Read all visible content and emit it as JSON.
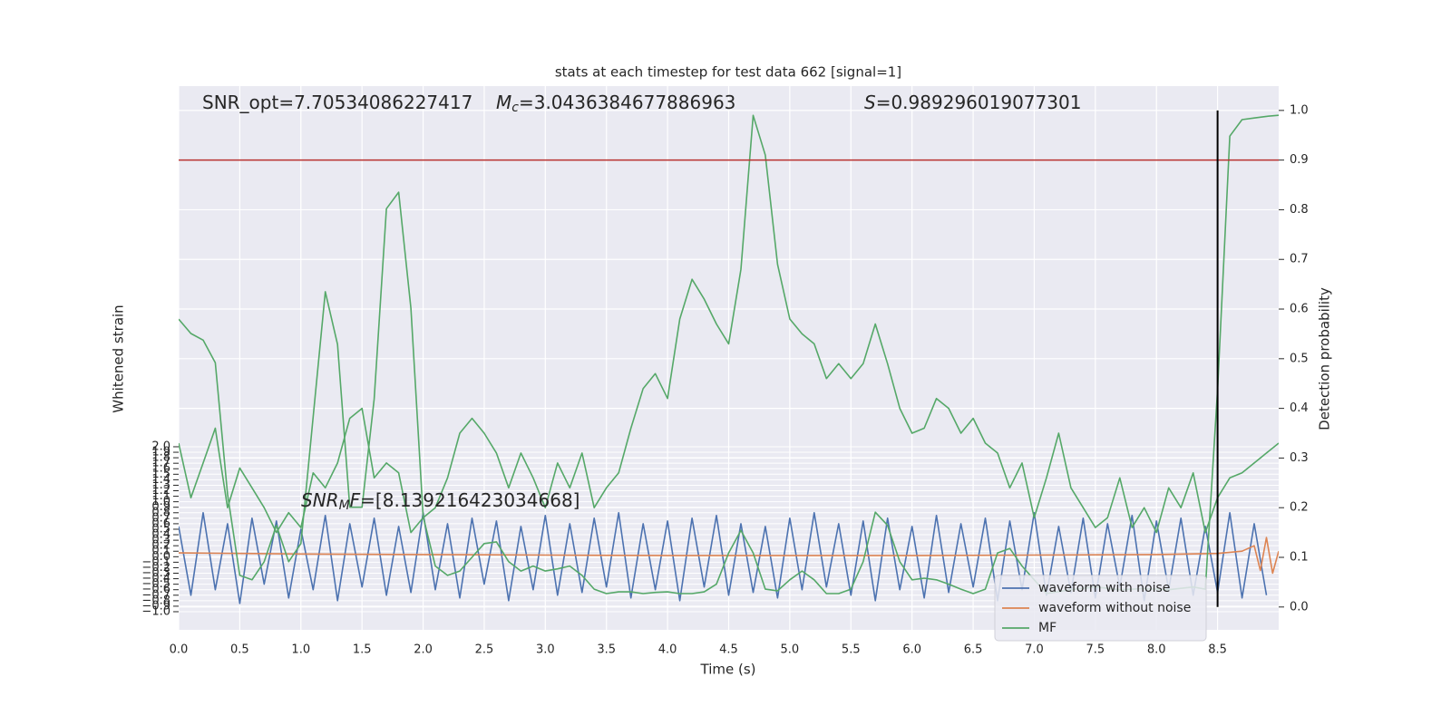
{
  "chart_data": {
    "type": "line",
    "title": "stats at each timestep for test data 662 [signal=1]",
    "xlabel": "Time (s)",
    "ylabel": "Whitened strain",
    "y2label": "Detection probability",
    "xlim": [
      0,
      9.0
    ],
    "ylim": [
      -1.33,
      8.56
    ],
    "y2lim": [
      -0.046,
      1.049
    ],
    "xticks": [
      {
        "value": 0,
        "label": "0.0"
      },
      0.5,
      {
        "value": 1,
        "label": "1.0"
      },
      1.5,
      {
        "value": 2,
        "label": "2.0"
      },
      2.5,
      {
        "value": 3,
        "label": "3.0"
      },
      3.5,
      {
        "value": 4,
        "label": "4.0"
      },
      4.5,
      {
        "value": 5,
        "label": "5.0"
      },
      5.5,
      {
        "value": 6,
        "label": "6.0"
      },
      6.5,
      {
        "value": 7,
        "label": "7.0"
      },
      7.5,
      {
        "value": 8,
        "label": "8.0"
      },
      8.5
    ],
    "yticks": [
      {
        "value": -1.0,
        "label": "−1.0"
      },
      {
        "value": -0.9,
        "label": "−0.9"
      },
      {
        "value": -0.8,
        "label": "−0.8"
      },
      {
        "value": -0.7,
        "label": "−0.7"
      },
      {
        "value": -0.6,
        "label": "−0.6"
      },
      {
        "value": -0.5,
        "label": "−0.5"
      },
      {
        "value": -0.4,
        "label": "−0.4"
      },
      {
        "value": -0.3,
        "label": "−0.3"
      },
      {
        "value": -0.2,
        "label": "−0.2"
      },
      {
        "value": -0.1,
        "label": "−0.1"
      },
      {
        "value": 0,
        "label": "0.0"
      },
      0.1,
      0.2,
      0.3,
      0.4,
      0.5,
      0.6,
      0.7,
      0.8,
      0.9,
      {
        "value": 1,
        "label": "1.0"
      },
      1.1,
      1.2,
      1.3,
      1.4,
      1.5,
      1.6,
      1.7,
      1.8,
      1.9,
      {
        "value": 2,
        "label": "2.0"
      }
    ],
    "y2ticks": [
      {
        "value": 0,
        "label": "0.0"
      },
      0.1,
      0.2,
      0.3,
      0.4,
      0.5,
      0.6,
      0.7,
      0.8,
      0.9,
      {
        "value": 1,
        "label": "1.0"
      }
    ],
    "grid": true,
    "legend": "lower right",
    "series": [
      {
        "name": "waveform with noise",
        "color": "#4c72b0",
        "axis": "y",
        "x": [
          0,
          0.1,
          0.2,
          0.3,
          0.4,
          0.5,
          0.6,
          0.7,
          0.8,
          0.9,
          1,
          1.1,
          1.2,
          1.3,
          1.4,
          1.5,
          1.6,
          1.7,
          1.8,
          1.9,
          2,
          2.1,
          2.2,
          2.3,
          2.4,
          2.5,
          2.6,
          2.7,
          2.8,
          2.9,
          3,
          3.1,
          3.2,
          3.3,
          3.4,
          3.5,
          3.6,
          3.7,
          3.8,
          3.9,
          4,
          4.1,
          4.2,
          4.3,
          4.4,
          4.5,
          4.6,
          4.7,
          4.8,
          4.9,
          5,
          5.1,
          5.2,
          5.3,
          5.4,
          5.5,
          5.6,
          5.7,
          5.8,
          5.9,
          6,
          6.1,
          6.2,
          6.3,
          6.4,
          6.5,
          6.6,
          6.7,
          6.8,
          6.9,
          7,
          7.1,
          7.2,
          7.3,
          7.4,
          7.5,
          7.6,
          7.7,
          7.8,
          7.9,
          8,
          8.1,
          8.2,
          8.3,
          8.4,
          8.5,
          8.6,
          8.7,
          8.8,
          8.9
        ],
        "values": [
          0.55,
          -0.7,
          0.8,
          -0.6,
          0.6,
          -0.85,
          0.7,
          -0.5,
          0.65,
          -0.75,
          0.5,
          -0.6,
          0.75,
          -0.8,
          0.6,
          -0.55,
          0.7,
          -0.7,
          0.55,
          -0.65,
          0.8,
          -0.6,
          0.6,
          -0.75,
          0.7,
          -0.5,
          0.65,
          -0.8,
          0.55,
          -0.6,
          0.75,
          -0.7,
          0.6,
          -0.65,
          0.7,
          -0.55,
          0.8,
          -0.75,
          0.6,
          -0.6,
          0.65,
          -0.8,
          0.7,
          -0.55,
          0.75,
          -0.7,
          0.6,
          -0.65,
          0.55,
          -0.75,
          0.7,
          -0.6,
          0.8,
          -0.55,
          0.6,
          -0.7,
          0.65,
          -0.8,
          0.7,
          -0.6,
          0.55,
          -0.75,
          0.75,
          -0.65,
          0.6,
          -0.55,
          0.7,
          -0.8,
          0.65,
          -0.6,
          0.8,
          -0.7,
          0.55,
          -0.65,
          0.7,
          -0.75,
          0.6,
          -0.55,
          0.75,
          -0.8,
          0.65,
          -0.6,
          0.7,
          -0.7,
          0.55,
          -0.65,
          0.8,
          -0.75,
          0.6,
          -0.7
        ]
      },
      {
        "name": "waveform without noise",
        "color": "#dd8452",
        "axis": "y",
        "x": [
          0,
          1,
          2,
          3,
          4,
          5,
          6,
          7,
          8,
          8.5,
          8.7,
          8.8,
          8.85,
          8.9,
          8.95,
          9.0
        ],
        "values": [
          0.07,
          0.05,
          0.04,
          0.03,
          0.02,
          0.02,
          0.02,
          0.03,
          0.04,
          0.06,
          0.1,
          0.2,
          -0.25,
          0.35,
          -0.3,
          0.1
        ]
      },
      {
        "name": "MF",
        "color": "#55a868",
        "axis": "y",
        "x": [
          0,
          0.1,
          0.2,
          0.3,
          0.4,
          0.5,
          0.6,
          0.7,
          0.8,
          0.9,
          1,
          1.1,
          1.2,
          1.3,
          1.4,
          1.5,
          1.6,
          1.7,
          1.8,
          1.9,
          2,
          2.1,
          2.2,
          2.3,
          2.4,
          2.5,
          2.6,
          2.7,
          2.8,
          2.9,
          3,
          3.1,
          3.2,
          3.3,
          3.4,
          3.5,
          3.6,
          3.7,
          3.8,
          3.9,
          4,
          4.1,
          4.2,
          4.3,
          4.4,
          4.5,
          4.6,
          4.7,
          4.8,
          4.9,
          5,
          5.1,
          5.2,
          5.3,
          5.4,
          5.5,
          5.6,
          5.7,
          5.8,
          5.9,
          6,
          6.1,
          6.2,
          6.3,
          6.4,
          6.5,
          6.6,
          6.7,
          6.8,
          6.9,
          7,
          7.1,
          7.3,
          7.5,
          7.7,
          7.9,
          8.1,
          8.3,
          8.4,
          8.5,
          8.6,
          8.7,
          8.8,
          8.9,
          9.0
        ],
        "values": [
          4.32,
          4.06,
          3.94,
          3.53,
          1.14,
          -0.34,
          -0.42,
          -0.09,
          0.57,
          -0.09,
          0.24,
          2.54,
          4.82,
          3.86,
          0.9,
          0.9,
          2.87,
          6.33,
          6.63,
          4.52,
          0.73,
          -0.17,
          -0.34,
          -0.26,
          -0.01,
          0.24,
          0.27,
          -0.09,
          -0.26,
          -0.17,
          -0.26,
          -0.22,
          -0.17,
          -0.34,
          -0.59,
          -0.67,
          -0.64,
          -0.64,
          -0.67,
          -0.65,
          -0.64,
          -0.67,
          -0.67,
          -0.64,
          -0.5,
          0.07,
          0.48,
          0.07,
          -0.59,
          -0.62,
          -0.42,
          -0.26,
          -0.42,
          -0.67,
          -0.67,
          -0.59,
          -0.09,
          0.81,
          0.57,
          -0.09,
          -0.42,
          -0.39,
          -0.42,
          -0.5,
          -0.59,
          -0.67,
          -0.59,
          0.07,
          0.15,
          -0.17,
          -0.42,
          -0.67,
          -0.6,
          -0.55,
          -0.6,
          -0.58,
          -0.6,
          -0.55,
          -0.59,
          3.04,
          7.65,
          7.95,
          7.98,
          8.01,
          8.03
        ]
      },
      {
        "color": "#55a868",
        "axis": "y2",
        "x": [
          0,
          0.1,
          0.2,
          0.3,
          0.4,
          0.5,
          0.6,
          0.7,
          0.8,
          0.9,
          1,
          1.1,
          1.2,
          1.3,
          1.4,
          1.5,
          1.6,
          1.7,
          1.8,
          1.9,
          2,
          2.1,
          2.2,
          2.3,
          2.4,
          2.5,
          2.6,
          2.7,
          2.8,
          2.9,
          3,
          3.1,
          3.2,
          3.3,
          3.4,
          3.5,
          3.6,
          3.7,
          3.8,
          3.9,
          4,
          4.1,
          4.2,
          4.3,
          4.4,
          4.5,
          4.6,
          4.7,
          4.8,
          4.9,
          5,
          5.1,
          5.2,
          5.3,
          5.4,
          5.5,
          5.6,
          5.7,
          5.8,
          5.9,
          6,
          6.1,
          6.2,
          6.3,
          6.4,
          6.5,
          6.6,
          6.7,
          6.8,
          6.9,
          7,
          7.1,
          7.2,
          7.3,
          7.4,
          7.5,
          7.6,
          7.7,
          7.8,
          7.9,
          8,
          8.1,
          8.2,
          8.3,
          8.4,
          8.5,
          8.6,
          8.7,
          8.8,
          8.9,
          9.0
        ],
        "values": [
          0.33,
          0.22,
          0.29,
          0.36,
          0.2,
          0.28,
          0.24,
          0.2,
          0.15,
          0.19,
          0.16,
          0.27,
          0.24,
          0.29,
          0.38,
          0.4,
          0.26,
          0.29,
          0.27,
          0.15,
          0.18,
          0.2,
          0.26,
          0.35,
          0.38,
          0.35,
          0.31,
          0.24,
          0.31,
          0.26,
          0.2,
          0.29,
          0.24,
          0.31,
          0.2,
          0.24,
          0.27,
          0.36,
          0.44,
          0.47,
          0.42,
          0.58,
          0.66,
          0.62,
          0.57,
          0.53,
          0.68,
          0.99,
          0.91,
          0.69,
          0.58,
          0.55,
          0.53,
          0.46,
          0.49,
          0.46,
          0.49,
          0.57,
          0.49,
          0.4,
          0.35,
          0.36,
          0.42,
          0.4,
          0.35,
          0.38,
          0.33,
          0.31,
          0.24,
          0.29,
          0.18,
          0.26,
          0.35,
          0.24,
          0.2,
          0.16,
          0.18,
          0.26,
          0.16,
          0.2,
          0.15,
          0.24,
          0.2,
          0.27,
          0.15,
          0.22,
          0.26,
          0.27,
          0.29,
          0.31,
          0.33
        ]
      }
    ],
    "hlines": [
      {
        "value": 0.9,
        "axis": "y2",
        "color": "#b8312f"
      }
    ],
    "vlines": [
      {
        "x": 8.5,
        "ymin": 0,
        "ymax": 1,
        "axis": "y2",
        "color": "#000000"
      }
    ],
    "annotations": [
      {
        "segments": [
          {
            "text": "SNR_opt=7.70534086227417",
            "style": "normal"
          }
        ]
      },
      {
        "segments": [
          {
            "text": "M",
            "style": "italic"
          },
          {
            "text": "c",
            "style": "sub"
          },
          {
            "text": "=3.0436384677886963",
            "style": "normal"
          }
        ]
      },
      {
        "segments": [
          {
            "text": "S",
            "style": "italic"
          },
          {
            "text": "=0.989296019077301",
            "style": "normal"
          }
        ]
      },
      {
        "segments": [
          {
            "text": "SNR",
            "style": "italic"
          },
          {
            "text": "M",
            "style": "sub"
          },
          {
            "text": "F",
            "style": "italic"
          },
          {
            "text": "=[8.139216423034668]",
            "style": "normal"
          }
        ]
      }
    ]
  }
}
